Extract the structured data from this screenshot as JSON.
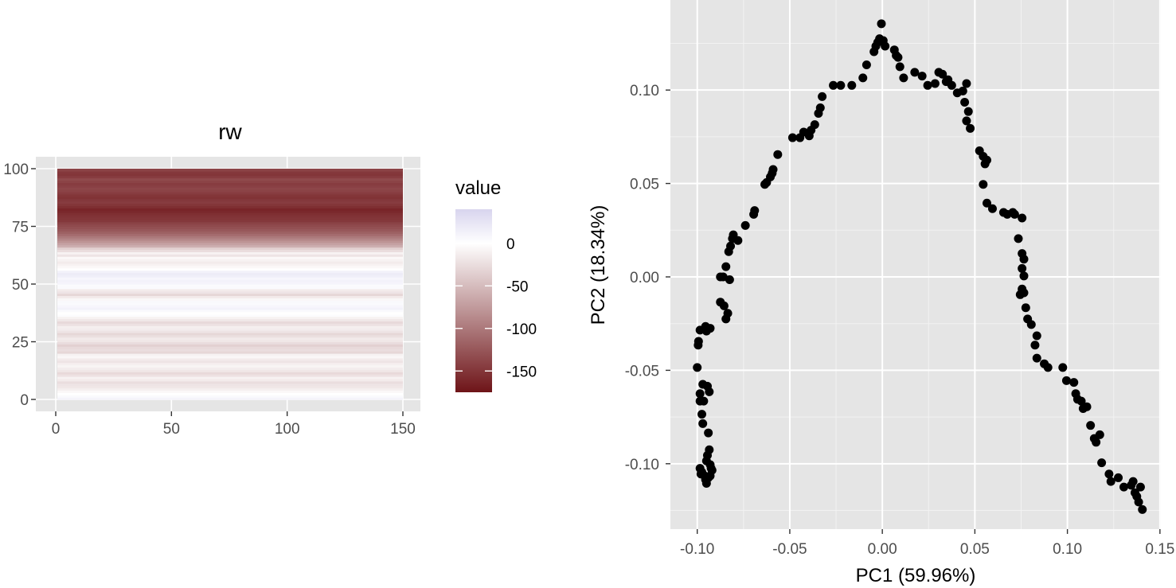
{
  "colors": {
    "panel_bg": "#e5e5e5",
    "grid_major": "#ffffff",
    "point": "#000000",
    "heat_low": "#6e1418",
    "heat_mid": "#ffffff",
    "heat_high": "#d8d4ee"
  },
  "chart_data": [
    {
      "type": "heatmap",
      "title": "rw",
      "xlabel": "",
      "ylabel": "",
      "xlim": [
        0,
        150
      ],
      "ylim": [
        0,
        100
      ],
      "x_ticks": [
        0,
        50,
        100,
        150
      ],
      "x_tick_labels": [
        "0",
        "50",
        "100",
        "150"
      ],
      "y_ticks": [
        0,
        25,
        50,
        75,
        100
      ],
      "y_tick_labels": [
        "0",
        "25",
        "50",
        "75",
        "100"
      ],
      "grid": true,
      "legend": {
        "title": "value",
        "position": "right",
        "range": [
          -175,
          40
        ],
        "breaks": [
          0,
          -50,
          -100,
          -150
        ],
        "labels": [
          "0",
          "-50",
          "-100",
          "-150"
        ]
      },
      "row_values": [
        10,
        5,
        0,
        -5,
        -12,
        -18,
        -20,
        -25,
        -15,
        -10,
        -22,
        -28,
        -18,
        -14,
        -8,
        -12,
        -20,
        -15,
        -6,
        -10,
        -30,
        -25,
        -28,
        -35,
        -26,
        -18,
        -16,
        -24,
        -30,
        -20,
        -14,
        -12,
        -22,
        -28,
        -18,
        -10,
        3,
        0,
        5,
        12,
        8,
        5,
        6,
        -6,
        -15,
        -30,
        -20,
        -15,
        5,
        4,
        10,
        12,
        8,
        15,
        18,
        12,
        0,
        -5,
        -10,
        -15,
        -10,
        -5,
        -20,
        -10,
        -25,
        -35,
        -60,
        -70,
        -80,
        -90,
        -100,
        -110,
        -118,
        -125,
        -130,
        -135,
        -140,
        -148,
        -150,
        -152,
        -155,
        -160,
        -162,
        -155,
        -150,
        -145,
        -148,
        -152,
        -150,
        -145,
        -140,
        -138,
        -142,
        -145,
        -140,
        -135,
        -145,
        -150,
        -148,
        -140
      ]
    },
    {
      "type": "scatter",
      "title": "",
      "xlabel": "PC1 (59.96%)",
      "ylabel": "PC2 (18.34%)",
      "xlim": [
        -0.1145,
        0.1505
      ],
      "ylim": [
        -0.135,
        0.1482
      ],
      "x_ticks": [
        -0.1,
        -0.05,
        0.0,
        0.05,
        0.1,
        0.15
      ],
      "x_tick_labels": [
        "-0.10",
        "-0.05",
        "0.00",
        "0.05",
        "0.10",
        "0.15"
      ],
      "y_ticks": [
        -0.1,
        -0.05,
        0.0,
        0.05,
        0.1
      ],
      "y_tick_labels": [
        "-0.10",
        "-0.05",
        "0.00",
        "0.05",
        "0.10"
      ],
      "grid": true,
      "points": [
        [
          -0.1,
          -0.0485
        ],
        [
          -0.0995,
          -0.0365
        ],
        [
          -0.0993,
          -0.0345
        ],
        [
          -0.0985,
          -0.0285
        ],
        [
          -0.0955,
          -0.0265
        ],
        [
          -0.095,
          -0.029
        ],
        [
          -0.093,
          -0.0275
        ],
        [
          -0.0985,
          -0.0625
        ],
        [
          -0.097,
          -0.0575
        ],
        [
          -0.0945,
          -0.0585
        ],
        [
          -0.0935,
          -0.0615
        ],
        [
          -0.0965,
          -0.0665
        ],
        [
          -0.0985,
          -0.0665
        ],
        [
          -0.0975,
          -0.0735
        ],
        [
          -0.097,
          -0.0785
        ],
        [
          -0.094,
          -0.0835
        ],
        [
          -0.0935,
          -0.0925
        ],
        [
          -0.0945,
          -0.0955
        ],
        [
          -0.095,
          -0.0985
        ],
        [
          -0.093,
          -0.1005
        ],
        [
          -0.0925,
          -0.1025
        ],
        [
          -0.0985,
          -0.1025
        ],
        [
          -0.098,
          -0.1055
        ],
        [
          -0.096,
          -0.1065
        ],
        [
          -0.0955,
          -0.1085
        ],
        [
          -0.095,
          -0.1105
        ],
        [
          -0.093,
          -0.1065
        ],
        [
          -0.092,
          -0.1035
        ],
        [
          -0.0975,
          -0.1045
        ],
        [
          -0.094,
          -0.1075
        ],
        [
          -0.0875,
          0.0
        ],
        [
          -0.086,
          0.0
        ],
        [
          -0.0845,
          0.0055
        ],
        [
          -0.0825,
          -0.0015
        ],
        [
          -0.0875,
          -0.0135
        ],
        [
          -0.0855,
          -0.0155
        ],
        [
          -0.0835,
          -0.0195
        ],
        [
          -0.0845,
          -0.0225
        ],
        [
          -0.083,
          0.0135
        ],
        [
          -0.082,
          0.0165
        ],
        [
          -0.081,
          0.0205
        ],
        [
          -0.0805,
          0.0225
        ],
        [
          -0.078,
          0.0195
        ],
        [
          -0.074,
          0.0275
        ],
        [
          -0.0695,
          0.0335
        ],
        [
          -0.069,
          0.0355
        ],
        [
          -0.0635,
          0.0495
        ],
        [
          -0.0625,
          0.0505
        ],
        [
          -0.0605,
          0.0535
        ],
        [
          -0.0595,
          0.0555
        ],
        [
          -0.059,
          0.0575
        ],
        [
          -0.0565,
          0.0655
        ],
        [
          -0.0485,
          0.0745
        ],
        [
          -0.0445,
          0.0745
        ],
        [
          -0.0425,
          0.0775
        ],
        [
          -0.0395,
          0.0755
        ],
        [
          -0.0385,
          0.0785
        ],
        [
          -0.0365,
          0.0815
        ],
        [
          -0.0345,
          0.0875
        ],
        [
          -0.0335,
          0.0905
        ],
        [
          -0.0325,
          0.0965
        ],
        [
          -0.0265,
          0.1025
        ],
        [
          -0.0225,
          0.1025
        ],
        [
          -0.0165,
          0.1025
        ],
        [
          -0.0105,
          0.1065
        ],
        [
          -0.0085,
          0.1135
        ],
        [
          -0.0045,
          0.1205
        ],
        [
          -0.0035,
          0.1235
        ],
        [
          -0.0025,
          0.1255
        ],
        [
          -0.0015,
          0.1275
        ],
        [
          0.0005,
          0.1265
        ],
        [
          -0.0005,
          0.1355
        ],
        [
          0.0015,
          0.1235
        ],
        [
          0.0065,
          0.1215
        ],
        [
          0.0075,
          0.1185
        ],
        [
          0.0085,
          0.1175
        ],
        [
          0.0095,
          0.1125
        ],
        [
          0.0115,
          0.1065
        ],
        [
          0.0175,
          0.1095
        ],
        [
          0.0215,
          0.1075
        ],
        [
          0.0245,
          0.1025
        ],
        [
          0.0285,
          0.1035
        ],
        [
          0.0305,
          0.1095
        ],
        [
          0.0325,
          0.1085
        ],
        [
          0.0345,
          0.1045
        ],
        [
          0.0355,
          0.1055
        ],
        [
          0.0375,
          0.1025
        ],
        [
          0.0405,
          0.0985
        ],
        [
          0.0435,
          0.0995
        ],
        [
          0.0445,
          0.0935
        ],
        [
          0.0455,
          0.1035
        ],
        [
          0.0465,
          0.0885
        ],
        [
          0.0455,
          0.0835
        ],
        [
          0.0475,
          0.0795
        ],
        [
          0.0525,
          0.0675
        ],
        [
          0.0545,
          0.0645
        ],
        [
          0.0555,
          0.0605
        ],
        [
          0.0565,
          0.0625
        ],
        [
          0.0545,
          0.0495
        ],
        [
          0.0565,
          0.0395
        ],
        [
          0.0595,
          0.0365
        ],
        [
          0.0655,
          0.0345
        ],
        [
          0.0675,
          0.0335
        ],
        [
          0.0705,
          0.0345
        ],
        [
          0.0715,
          0.0335
        ],
        [
          0.0755,
          0.0315
        ],
        [
          0.0735,
          0.0205
        ],
        [
          0.0755,
          0.0125
        ],
        [
          0.0765,
          0.0095
        ],
        [
          0.0755,
          0.0045
        ],
        [
          0.0765,
          0.0005
        ],
        [
          0.0755,
          -0.0065
        ],
        [
          0.0765,
          -0.0085
        ],
        [
          0.0745,
          -0.0095
        ],
        [
          0.0775,
          -0.0165
        ],
        [
          0.0785,
          -0.0225
        ],
        [
          0.0805,
          -0.0255
        ],
        [
          0.0835,
          -0.0315
        ],
        [
          0.0825,
          -0.0365
        ],
        [
          0.0835,
          -0.0435
        ],
        [
          0.0875,
          -0.0465
        ],
        [
          0.0895,
          -0.0485
        ],
        [
          0.0975,
          -0.0485
        ],
        [
          0.0995,
          -0.0555
        ],
        [
          0.1035,
          -0.0565
        ],
        [
          0.1045,
          -0.0625
        ],
        [
          0.1055,
          -0.0655
        ],
        [
          0.1075,
          -0.0665
        ],
        [
          0.1085,
          -0.0705
        ],
        [
          0.1105,
          -0.0695
        ],
        [
          0.1125,
          -0.0795
        ],
        [
          0.1145,
          -0.0865
        ],
        [
          0.1155,
          -0.0885
        ],
        [
          0.1175,
          -0.0845
        ],
        [
          0.1185,
          -0.0995
        ],
        [
          0.1225,
          -0.1055
        ],
        [
          0.1235,
          -0.1095
        ],
        [
          0.1275,
          -0.1075
        ],
        [
          0.1305,
          -0.1125
        ],
        [
          0.1345,
          -0.1115
        ],
        [
          0.1355,
          -0.1095
        ],
        [
          0.1365,
          -0.1155
        ],
        [
          0.1375,
          -0.1175
        ],
        [
          0.1385,
          -0.1205
        ],
        [
          0.1395,
          -0.1125
        ],
        [
          0.1405,
          -0.1245
        ]
      ]
    }
  ]
}
